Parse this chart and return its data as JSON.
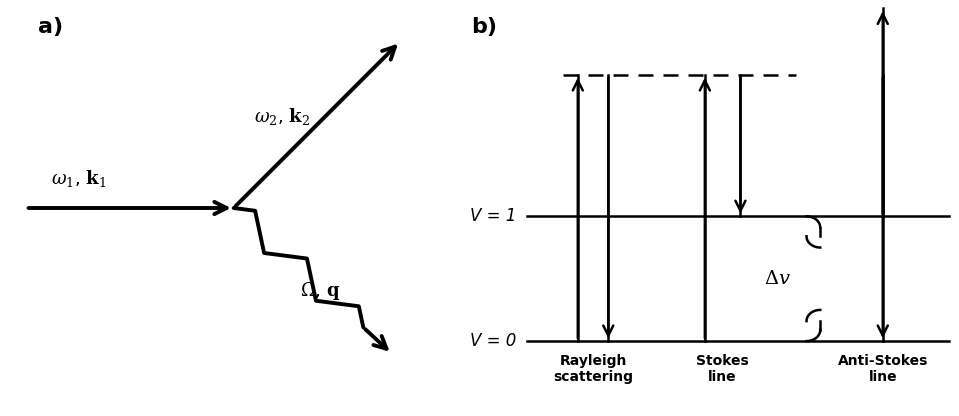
{
  "panel_a_label": "a)",
  "panel_b_label": "b)",
  "omega1_label": "$\\omega_1$, $\\mathbf{k}_1$",
  "omega2_label": "$\\omega_2$, $\\mathbf{k}_2$",
  "omega_phonon_label": "$\\Omega$, $\\mathbf{q}$",
  "v0_label": "V = 0",
  "v1_label": "V = 1",
  "delta_v_label": "$\\Delta v$",
  "rayleigh_label": "Rayleigh\nscattering",
  "stokes_label": "Stokes\nline",
  "antistokes_label": "Anti-Stokes\nline",
  "bg_color": "#ffffff",
  "font_size_label": 13,
  "font_size_panel": 16,
  "font_size_axis": 12,
  "font_size_bottom": 10
}
